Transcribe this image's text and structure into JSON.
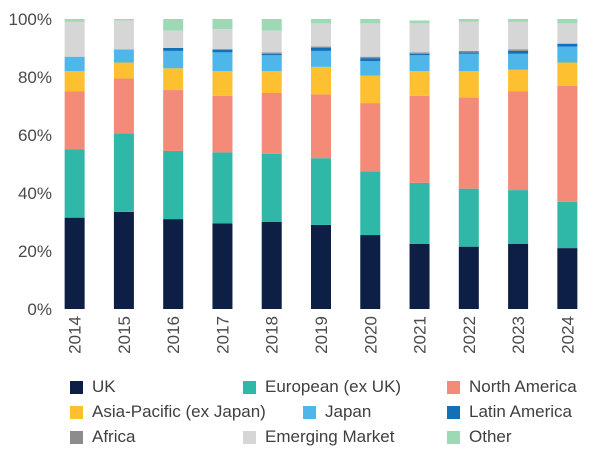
{
  "chart_data": {
    "type": "bar",
    "stacked": true,
    "categories": [
      "2014",
      "2015",
      "2016",
      "2017",
      "2018",
      "2019",
      "2020",
      "2021",
      "2022",
      "2023",
      "2024"
    ],
    "ylim": [
      0,
      100
    ],
    "yticks": [
      "0%",
      "20%",
      "40%",
      "60%",
      "80%",
      "100%"
    ],
    "grid": false,
    "legend_position": "bottom",
    "series": [
      {
        "name": "UK",
        "color": "#0d1f44",
        "values": [
          31.5,
          33.5,
          31,
          29.5,
          30,
          29,
          25.5,
          22.5,
          21.5,
          22.5,
          21
        ]
      },
      {
        "name": "European (ex UK)",
        "color": "#2fb8a8",
        "values": [
          23.5,
          27,
          23.5,
          24.5,
          23.5,
          23,
          22,
          21,
          20,
          18.5,
          16
        ]
      },
      {
        "name": "North America",
        "color": "#f48a78",
        "values": [
          20,
          19,
          21,
          19.5,
          21,
          22,
          23.5,
          30,
          31.5,
          34,
          40
        ]
      },
      {
        "name": "Asia-Pacific (ex Japan)",
        "color": "#fcc030",
        "values": [
          7,
          5.5,
          7.5,
          8.5,
          7.5,
          9.5,
          9.5,
          8.5,
          9,
          7.5,
          8
        ]
      },
      {
        "name": "Japan",
        "color": "#4eb6e8",
        "values": [
          5,
          4.5,
          6,
          6.5,
          5.5,
          5.5,
          5,
          5.5,
          6,
          5.5,
          5.5
        ]
      },
      {
        "name": "Latin America",
        "color": "#1170b8",
        "values": [
          0,
          0,
          1,
          1,
          0.5,
          1,
          1,
          0.5,
          0.5,
          1,
          1
        ]
      },
      {
        "name": "Africa",
        "color": "#8c8c8c",
        "values": [
          0,
          0,
          0,
          0,
          0.5,
          0.5,
          0.5,
          0.5,
          0.5,
          0.5,
          0
        ]
      },
      {
        "name": "Emerging Market",
        "color": "#d6d6d6",
        "values": [
          12,
          10,
          6,
          7,
          7.5,
          8,
          11.5,
          10,
          10,
          9.5,
          7
        ]
      },
      {
        "name": "Other",
        "color": "#9ed9b6",
        "values": [
          1,
          0.5,
          4,
          3.5,
          4,
          1.5,
          1.5,
          1,
          1,
          1,
          1.5
        ]
      }
    ]
  },
  "legend": {
    "items": [
      {
        "label": "UK",
        "color": "#0d1f44"
      },
      {
        "label": "European (ex UK)",
        "color": "#2fb8a8"
      },
      {
        "label": "North America",
        "color": "#f48a78"
      },
      {
        "label": "Asia-Pacific (ex Japan)",
        "color": "#fcc030"
      },
      {
        "label": "Japan",
        "color": "#4eb6e8"
      },
      {
        "label": "Latin America",
        "color": "#1170b8"
      },
      {
        "label": "Africa",
        "color": "#8c8c8c"
      },
      {
        "label": "Emerging Market",
        "color": "#d6d6d6"
      },
      {
        "label": "Other",
        "color": "#9ed9b6"
      }
    ]
  }
}
